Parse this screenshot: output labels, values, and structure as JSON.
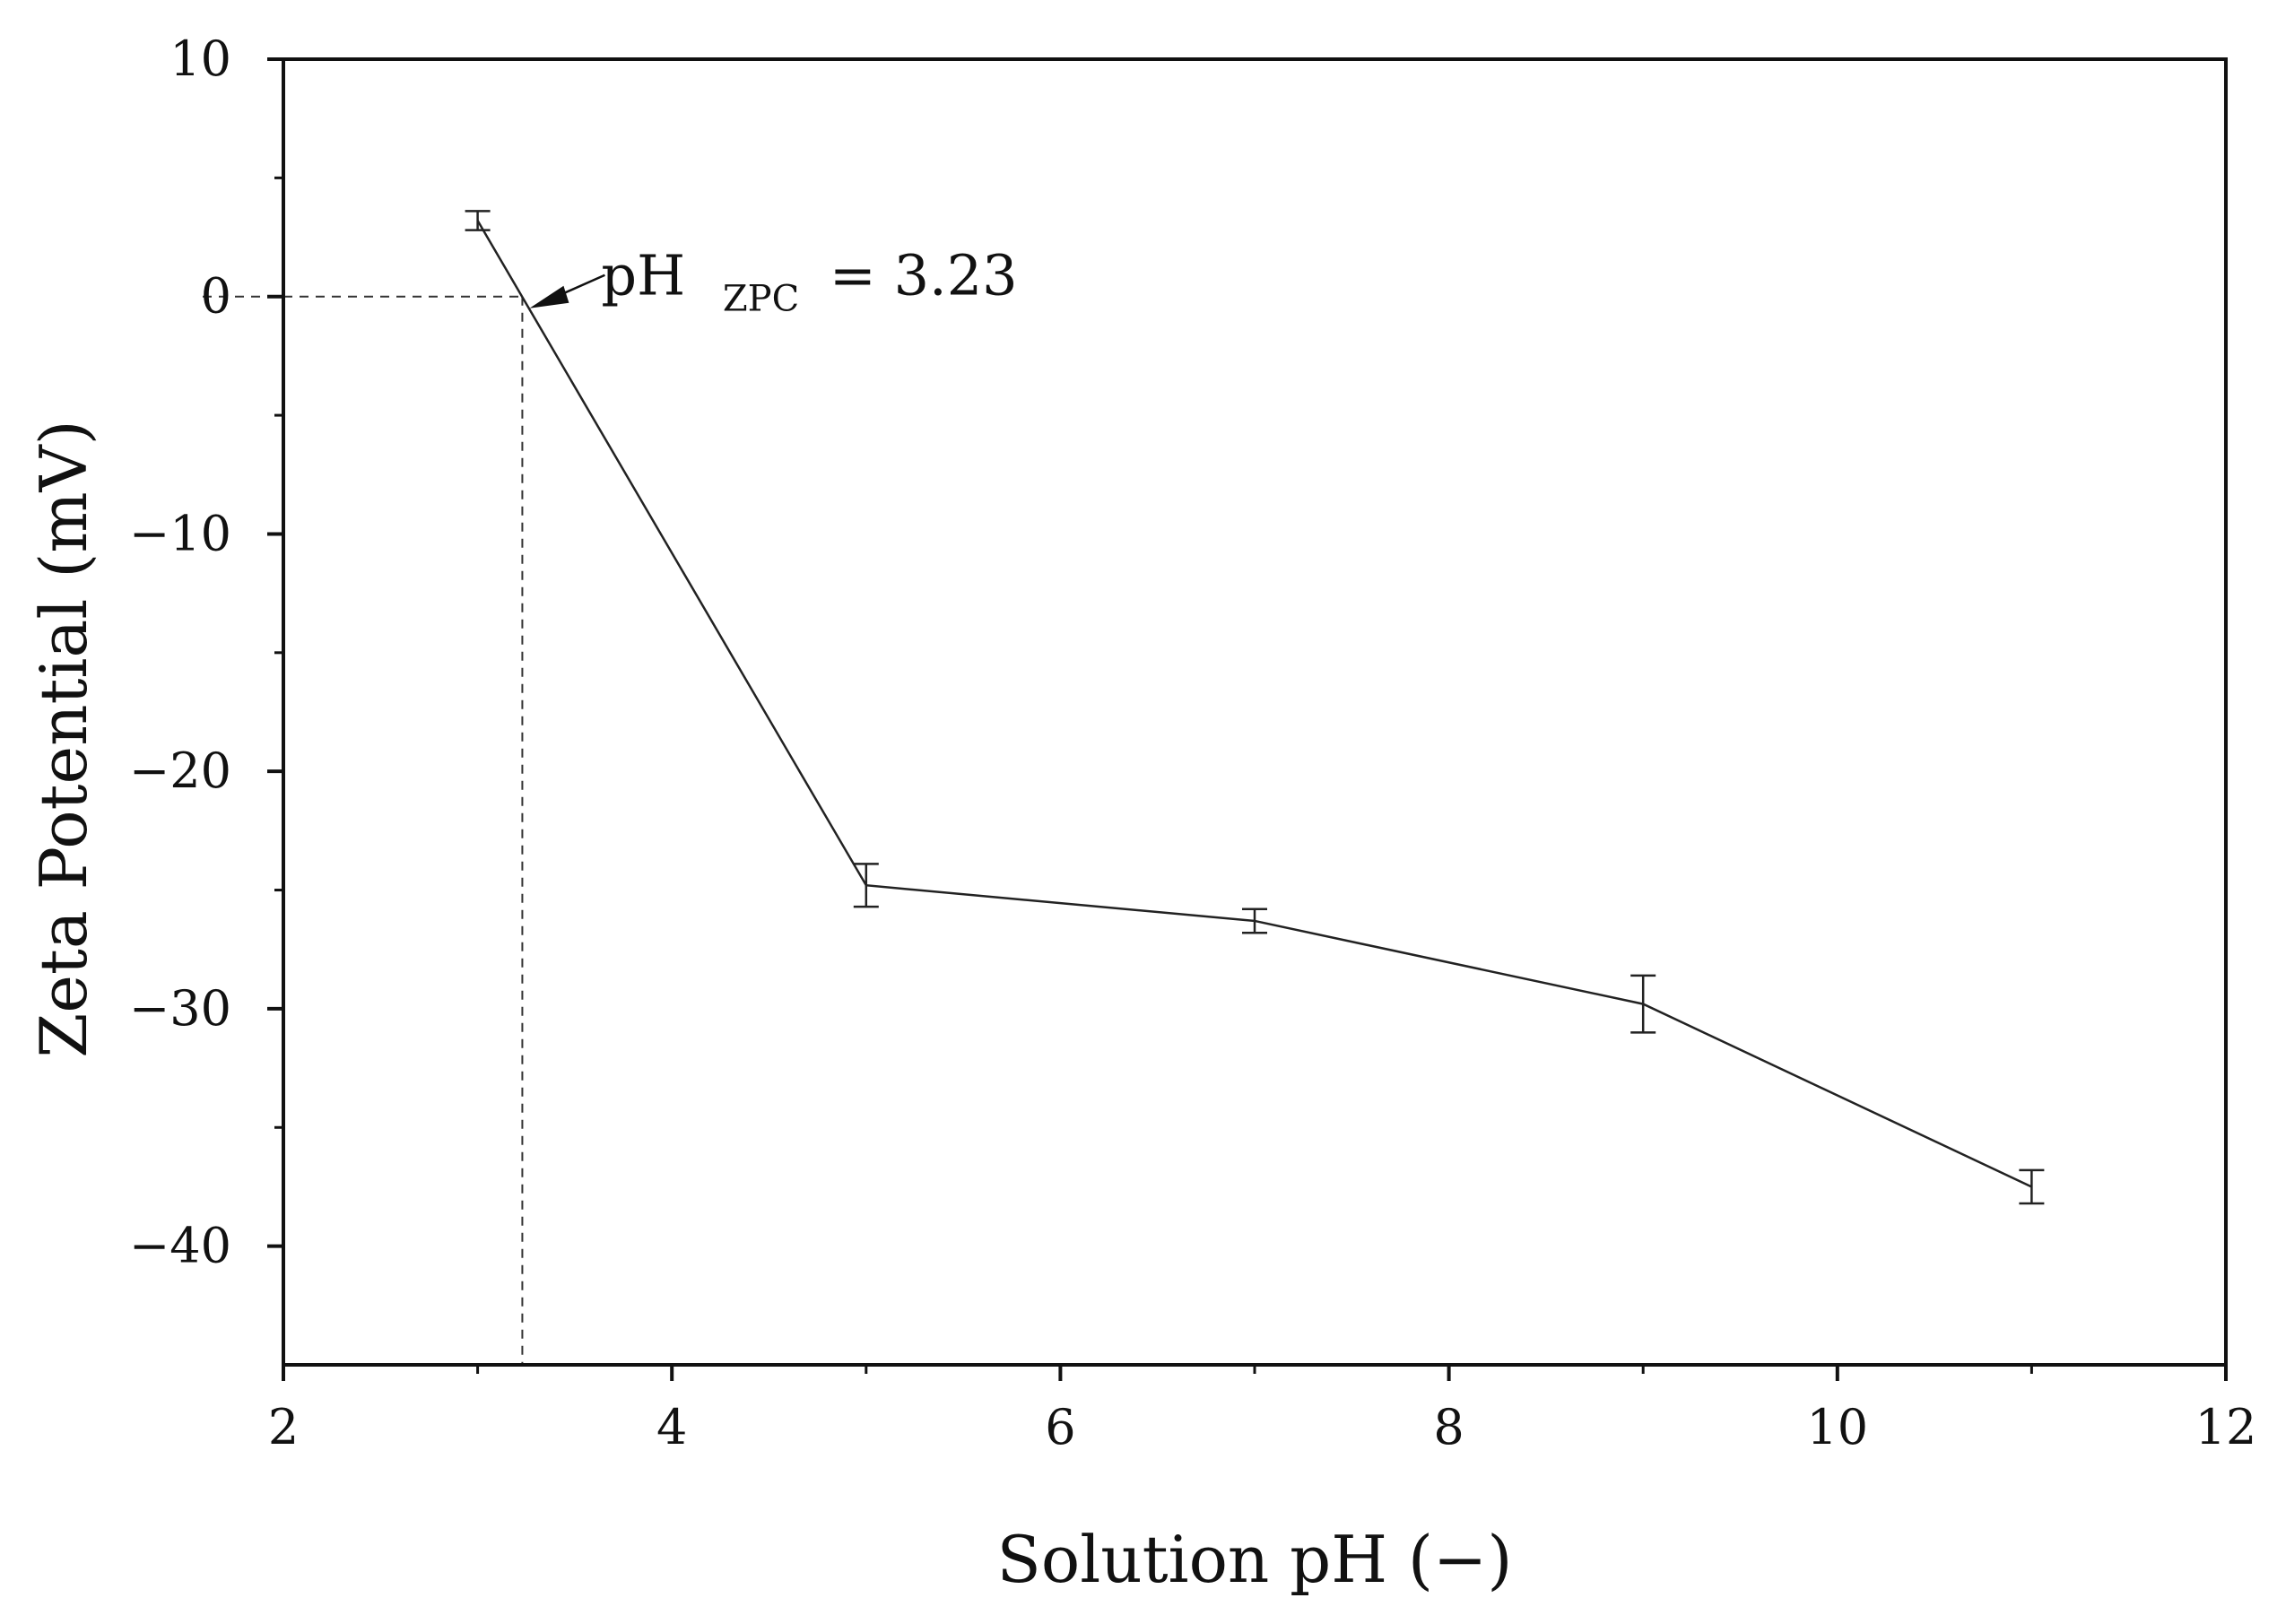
{
  "chart_data": {
    "type": "line",
    "title": "",
    "xlabel": "Solution pH (−)",
    "ylabel": "Zeta Potential (mV)",
    "xlim": [
      2,
      12
    ],
    "ylim": [
      -45,
      10
    ],
    "xticks": [
      2,
      4,
      6,
      8,
      10,
      12
    ],
    "yticks": [
      10,
      0,
      -10,
      -20,
      -30,
      -40
    ],
    "xtick_labels": [
      "2",
      "4",
      "6",
      "8",
      "10",
      "12"
    ],
    "ytick_labels": [
      "10",
      "0",
      "−10",
      "−20",
      "−30",
      "−40"
    ],
    "grid": false,
    "legend": "none",
    "series": [
      {
        "x": [
          3,
          5,
          7,
          9,
          11
        ],
        "values": [
          3.2,
          -24.8,
          -26.3,
          -29.8,
          -37.5
        ],
        "error": [
          0.4,
          0.9,
          0.5,
          1.2,
          0.7
        ],
        "color": "#222222"
      }
    ],
    "annotation": {
      "prefix": "pH",
      "subscript": "ZPC",
      "suffix": "= 3.23",
      "x": 3.23,
      "y": 0
    }
  }
}
